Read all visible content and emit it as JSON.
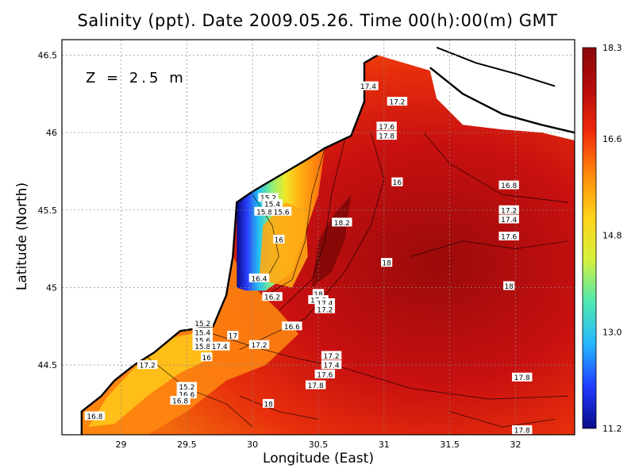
{
  "title": "Salinity (ppt). Date 2009.05.26. Time 00(h):00(m) GMT",
  "depth_label": "Z = 2.5 m",
  "xlabel": "Longitude (East)",
  "ylabel": "Latitude (North)",
  "chart_data": {
    "type": "heatmap",
    "variable": "Salinity (ppt)",
    "depth": "Z = 2.5 m",
    "date": "2009.05.26",
    "time": "00(h):00(m) GMT",
    "xlabel": "Longitude (East)",
    "ylabel": "Latitude (North)",
    "xlim": [
      28.55,
      32.45
    ],
    "ylim": [
      44.05,
      46.6
    ],
    "x_ticks": [
      29,
      29.5,
      30,
      30.5,
      31,
      31.5,
      32
    ],
    "y_ticks": [
      44.5,
      45,
      45.5,
      46,
      46.5
    ],
    "grid": true,
    "colorbar": {
      "ticks": [
        11.2,
        13.0,
        14.8,
        16.6,
        18.3
      ],
      "tick_labels": [
        "11.2",
        "13.0",
        "14.8",
        "16.6",
        "18.3"
      ],
      "colors": [
        "#0a0a8a",
        "#1f3cff",
        "#25b8ff",
        "#4fe8b0",
        "#d6f03a",
        "#ffd21a",
        "#ff8a0a",
        "#f02a0a",
        "#b80c0c",
        "#8a0808"
      ]
    },
    "contour_labels": [
      {
        "text": "17.4",
        "lon": 30.88,
        "lat": 46.3
      },
      {
        "text": "17.2",
        "lon": 31.1,
        "lat": 46.2
      },
      {
        "text": "17.6",
        "lon": 31.02,
        "lat": 46.04
      },
      {
        "text": "17.8",
        "lon": 31.02,
        "lat": 45.98
      },
      {
        "text": "16",
        "lon": 31.1,
        "lat": 45.68
      },
      {
        "text": "16.8",
        "lon": 31.95,
        "lat": 45.66
      },
      {
        "text": "17.2",
        "lon": 31.95,
        "lat": 45.5
      },
      {
        "text": "17.4",
        "lon": 31.95,
        "lat": 45.44
      },
      {
        "text": "17.6",
        "lon": 31.95,
        "lat": 45.33
      },
      {
        "text": "18.2",
        "lon": 30.68,
        "lat": 45.42
      },
      {
        "text": "15.2",
        "lon": 30.12,
        "lat": 45.58
      },
      {
        "text": "15.4",
        "lon": 30.15,
        "lat": 45.54
      },
      {
        "text": "15.8",
        "lon": 30.09,
        "lat": 45.49
      },
      {
        "text": "15.6",
        "lon": 30.22,
        "lat": 45.49
      },
      {
        "text": "16",
        "lon": 30.2,
        "lat": 45.31
      },
      {
        "text": "18",
        "lon": 31.02,
        "lat": 45.16
      },
      {
        "text": "18",
        "lon": 31.95,
        "lat": 45.01
      },
      {
        "text": "16.4",
        "lon": 30.05,
        "lat": 45.06
      },
      {
        "text": "16.2",
        "lon": 30.15,
        "lat": 44.94
      },
      {
        "text": "18",
        "lon": 30.5,
        "lat": 44.96
      },
      {
        "text": "17.6",
        "lon": 30.5,
        "lat": 44.92
      },
      {
        "text": "17.4",
        "lon": 30.55,
        "lat": 44.9
      },
      {
        "text": "17.2",
        "lon": 30.55,
        "lat": 44.86
      },
      {
        "text": "16.6",
        "lon": 30.3,
        "lat": 44.75
      },
      {
        "text": "15.2",
        "lon": 29.62,
        "lat": 44.77
      },
      {
        "text": "15.4",
        "lon": 29.62,
        "lat": 44.71
      },
      {
        "text": "15.6",
        "lon": 29.62,
        "lat": 44.66
      },
      {
        "text": "15.8",
        "lon": 29.62,
        "lat": 44.62
      },
      {
        "text": "17.4",
        "lon": 29.75,
        "lat": 44.62
      },
      {
        "text": "17",
        "lon": 29.85,
        "lat": 44.69
      },
      {
        "text": "17.2",
        "lon": 30.05,
        "lat": 44.63
      },
      {
        "text": "16",
        "lon": 29.65,
        "lat": 44.55
      },
      {
        "text": "17.2",
        "lon": 29.2,
        "lat": 44.5
      },
      {
        "text": "17.2",
        "lon": 30.6,
        "lat": 44.56
      },
      {
        "text": "17.4",
        "lon": 30.6,
        "lat": 44.5
      },
      {
        "text": "17.6",
        "lon": 30.55,
        "lat": 44.44
      },
      {
        "text": "17.8",
        "lon": 30.48,
        "lat": 44.37
      },
      {
        "text": "17.8",
        "lon": 32.05,
        "lat": 44.42
      },
      {
        "text": "15.2",
        "lon": 29.5,
        "lat": 44.36
      },
      {
        "text": "16.6",
        "lon": 29.5,
        "lat": 44.31
      },
      {
        "text": "16.8",
        "lon": 29.45,
        "lat": 44.27
      },
      {
        "text": "18",
        "lon": 30.12,
        "lat": 44.25
      },
      {
        "text": "16.8",
        "lon": 28.8,
        "lat": 44.17
      },
      {
        "text": "17.8",
        "lon": 32.05,
        "lat": 44.08
      }
    ]
  }
}
